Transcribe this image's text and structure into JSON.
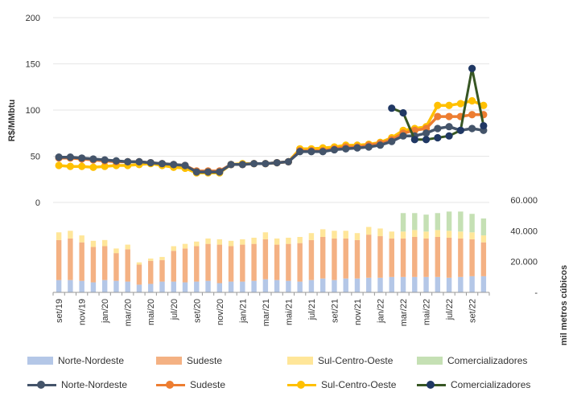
{
  "chart_data": {
    "type": "bar+line",
    "y_axis_label": "R$/MMbtu",
    "secondary_axis_label": "mil metros cúbicos",
    "price_axis": {
      "ticks": [
        "0",
        "50",
        "100",
        "150",
        "200"
      ],
      "ylim": [
        0,
        200
      ]
    },
    "volume_axis": {
      "ticks": [
        "-",
        "20.000",
        "40.000",
        "60.000"
      ],
      "ylim": [
        0,
        60000
      ]
    },
    "x_tick_labels": [
      "set/19",
      "nov/19",
      "jan/20",
      "mar/20",
      "mai/20",
      "jul/20",
      "set/20",
      "nov/20",
      "jan/21",
      "mar/21",
      "mai/21",
      "jul/21",
      "set/21",
      "nov/21",
      "jan/22",
      "mar/22",
      "mai/22",
      "jul/22",
      "set/22"
    ],
    "months": 38,
    "colors": {
      "norte_nordeste_bar": "#b4c7e7",
      "sudeste_bar": "#f4b183",
      "sul_centro_oeste_bar": "#ffe699",
      "comercializadores_bar": "#c5e0b4",
      "norte_nordeste_line": "#44546a",
      "sudeste_line": "#ed7d31",
      "sul_centro_oeste_line": "#ffc000",
      "comercializadores_line": "#375623",
      "comercializadores_marker": "#203864",
      "gridline": "#e6e6e6"
    },
    "bar_series": [
      {
        "name": "Norte-Nordeste",
        "values": [
          8000,
          8000,
          7500,
          6500,
          8000,
          7500,
          7000,
          5000,
          5500,
          7000,
          7000,
          6500,
          7000,
          7500,
          6000,
          7000,
          7000,
          7500,
          8500,
          8000,
          7500,
          7000,
          8000,
          9000,
          8000,
          9000,
          9000,
          9500,
          9500,
          10000,
          10000,
          10000,
          10000,
          10000,
          9500,
          10000,
          10500,
          10500
        ]
      },
      {
        "name": "Sudeste",
        "values": [
          26000,
          27000,
          25000,
          23000,
          22000,
          18000,
          21000,
          13000,
          15000,
          14000,
          20000,
          22000,
          23000,
          24000,
          25000,
          23000,
          24000,
          24000,
          26000,
          23000,
          24000,
          25000,
          26000,
          27000,
          27000,
          26000,
          25000,
          28000,
          27000,
          25000,
          25000,
          26000,
          25000,
          26000,
          26000,
          25000,
          24000,
          22000
        ]
      },
      {
        "name": "Sul-Centro-Oeste",
        "values": [
          5000,
          5000,
          4500,
          4000,
          4000,
          3000,
          3000,
          1500,
          1500,
          2000,
          3000,
          3000,
          3000,
          3500,
          3500,
          3500,
          3500,
          4000,
          4500,
          4000,
          4000,
          4000,
          4500,
          5000,
          5000,
          5000,
          4500,
          5000,
          5000,
          4500,
          4500,
          4500,
          4500,
          4500,
          4500,
          4500,
          4500,
          4500
        ]
      },
      {
        "name": "Comercializadores",
        "values": [
          0,
          0,
          0,
          0,
          0,
          0,
          0,
          0,
          0,
          0,
          0,
          0,
          0,
          0,
          0,
          0,
          0,
          0,
          0,
          0,
          0,
          0,
          0,
          0,
          0,
          0,
          0,
          0,
          0,
          0,
          12000,
          11000,
          11000,
          11000,
          12500,
          13000,
          12000,
          11000
        ]
      }
    ],
    "line_series": [
      {
        "name": "Norte-Nordeste",
        "values": [
          49,
          49,
          48,
          47,
          46,
          45,
          44,
          44,
          43,
          42,
          41,
          40,
          33,
          33,
          33,
          41,
          41,
          42,
          42,
          43,
          44,
          55,
          55,
          55,
          57,
          58,
          59,
          60,
          62,
          66,
          72,
          72,
          75,
          80,
          82,
          78,
          80,
          78
        ]
      },
      {
        "name": "Sudeste",
        "values": [
          48,
          48,
          47,
          46,
          45,
          44,
          44,
          44,
          43,
          42,
          41,
          40,
          34,
          34,
          34,
          41,
          41,
          42,
          42,
          43,
          44,
          56,
          56,
          56,
          58,
          60,
          60,
          62,
          64,
          68,
          75,
          78,
          80,
          93,
          93,
          93,
          95,
          95
        ]
      },
      {
        "name": "Sul-Centro-Oeste",
        "values": [
          40,
          39,
          39,
          38,
          39,
          40,
          40,
          41,
          42,
          40,
          38,
          37,
          32,
          32,
          32,
          41,
          42,
          42,
          42,
          43,
          44,
          58,
          58,
          59,
          60,
          62,
          62,
          63,
          65,
          70,
          78,
          80,
          82,
          105,
          105,
          107,
          110,
          105
        ]
      },
      {
        "name": "Comercializadores",
        "values": [
          null,
          null,
          null,
          null,
          null,
          null,
          null,
          null,
          null,
          null,
          null,
          null,
          null,
          null,
          null,
          null,
          null,
          null,
          null,
          null,
          null,
          null,
          null,
          null,
          null,
          null,
          null,
          null,
          null,
          102,
          97,
          68,
          68,
          70,
          72,
          78,
          145,
          83
        ]
      }
    ],
    "legend": {
      "bars": [
        "Norte-Nordeste",
        "Sudeste",
        "Sul-Centro-Oeste",
        "Comercializadores"
      ],
      "lines": [
        "Norte-Nordeste",
        "Sudeste",
        "Sul-Centro-Oeste",
        "Comercializadores"
      ]
    }
  }
}
